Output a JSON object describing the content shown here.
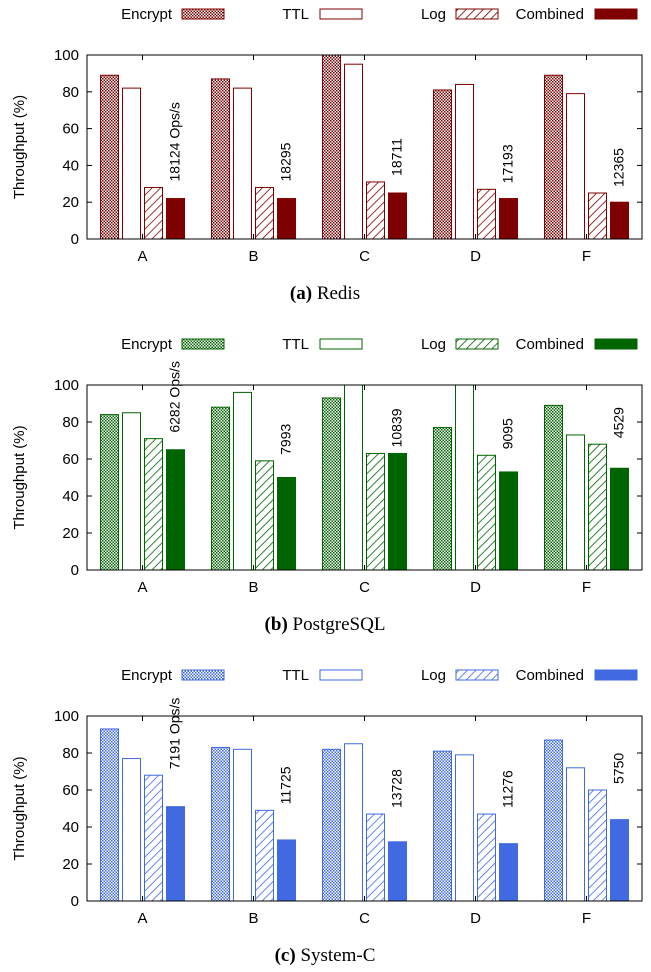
{
  "chart_data": [
    {
      "type": "bar",
      "categories": [
        "A",
        "B",
        "C",
        "D",
        "F"
      ],
      "series": [
        {
          "name": "Encrypt",
          "values": [
            89,
            87,
            100,
            81,
            89
          ]
        },
        {
          "name": "TTL",
          "values": [
            82,
            82,
            95,
            84,
            79
          ]
        },
        {
          "name": "Log",
          "values": [
            28,
            28,
            31,
            27,
            25
          ]
        },
        {
          "name": "Combined",
          "values": [
            22,
            22,
            25,
            22,
            20
          ]
        }
      ],
      "annotations": [
        "18124 Ops/s",
        "18295",
        "18711",
        "17193",
        "12365"
      ],
      "ylabel": "Throughput (%)",
      "ylim": [
        0,
        100
      ],
      "yticks": [
        0,
        20,
        40,
        60,
        80,
        100
      ],
      "caption_label": "(a)",
      "caption_text": "Redis",
      "color": "#7f0000",
      "grid": false,
      "legend_position": "top"
    },
    {
      "type": "bar",
      "categories": [
        "A",
        "B",
        "C",
        "D",
        "F"
      ],
      "series": [
        {
          "name": "Encrypt",
          "values": [
            84,
            88,
            93,
            77,
            89
          ]
        },
        {
          "name": "TTL",
          "values": [
            85,
            96,
            100,
            100,
            73
          ]
        },
        {
          "name": "Log",
          "values": [
            71,
            59,
            63,
            62,
            68
          ]
        },
        {
          "name": "Combined",
          "values": [
            65,
            50,
            63,
            53,
            55
          ]
        }
      ],
      "annotations": [
        "6282 Ops/s",
        "7993",
        "10839",
        "9095",
        "4529"
      ],
      "ylabel": "Throughput (%)",
      "ylim": [
        0,
        100
      ],
      "yticks": [
        0,
        20,
        40,
        60,
        80,
        100
      ],
      "caption_label": "(b)",
      "caption_text": "PostgreSQL",
      "color": "#006400",
      "grid": false,
      "legend_position": "top"
    },
    {
      "type": "bar",
      "categories": [
        "A",
        "B",
        "C",
        "D",
        "F"
      ],
      "series": [
        {
          "name": "Encrypt",
          "values": [
            93,
            83,
            82,
            81,
            87
          ]
        },
        {
          "name": "TTL",
          "values": [
            77,
            82,
            85,
            79,
            72
          ]
        },
        {
          "name": "Log",
          "values": [
            68,
            49,
            47,
            47,
            60
          ]
        },
        {
          "name": "Combined",
          "values": [
            51,
            33,
            32,
            31,
            44
          ]
        }
      ],
      "annotations": [
        "7191 Ops/s",
        "11725",
        "13728",
        "11276",
        "5750"
      ],
      "ylabel": "Throughput (%)",
      "ylim": [
        0,
        100
      ],
      "yticks": [
        0,
        20,
        40,
        60,
        80,
        100
      ],
      "caption_label": "(c)",
      "caption_text": "System-C",
      "color": "#4169e1",
      "grid": false,
      "legend_position": "top"
    }
  ]
}
